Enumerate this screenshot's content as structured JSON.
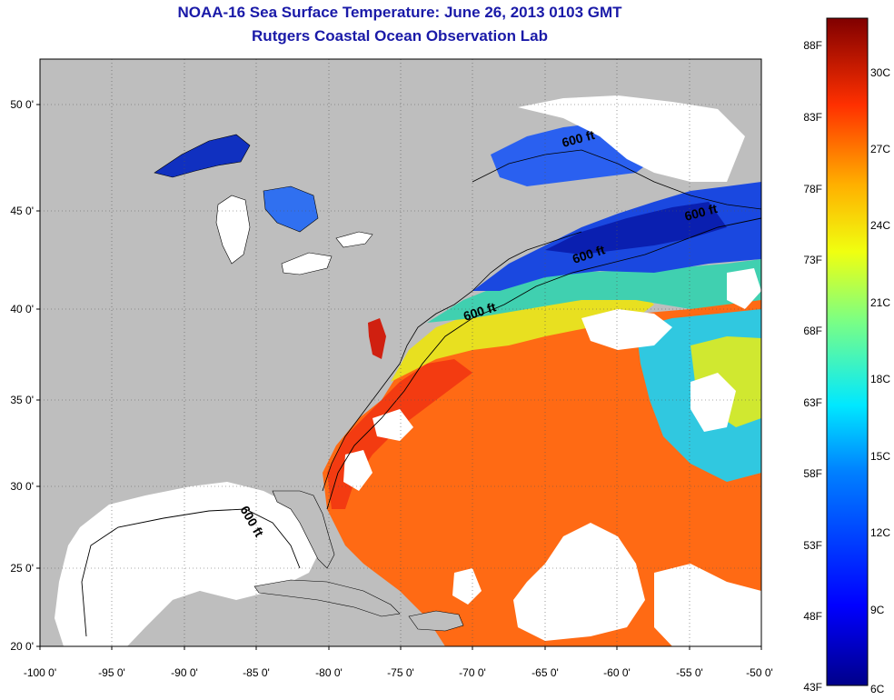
{
  "title": "NOAA-16 Sea Surface Temperature:  June 26, 2013 0103 GMT",
  "subtitle": "Rutgers Coastal Ocean Observation Lab",
  "lat_labels": [
    "50 0'",
    "45 0'",
    "40 0'",
    "35 0'",
    "30 0'",
    "25 0'",
    "20 0'"
  ],
  "lon_labels": [
    "-100 0'",
    "-95 0'",
    "-90 0'",
    "-85 0'",
    "-80 0'",
    "-75 0'",
    "-70 0'",
    "-65 0'",
    "-60 0'",
    "-55 0'",
    "-50 0'"
  ],
  "colorbar": {
    "fahrenheit": [
      "88F",
      "83F",
      "78F",
      "73F",
      "68F",
      "63F",
      "58F",
      "53F",
      "48F",
      "43F"
    ],
    "celsius": [
      "30C",
      "27C",
      "24C",
      "21C",
      "18C",
      "15C",
      "12C",
      "9C",
      "6C"
    ]
  },
  "contour_label": "600 ft",
  "contour_labels": [
    "600 ft",
    "600 ft",
    "600 ft",
    "600 ft",
    "600 ft"
  ],
  "colors": {
    "title": "#1a1aa8",
    "land": "#bebebe",
    "no_data": "#ffffff"
  }
}
